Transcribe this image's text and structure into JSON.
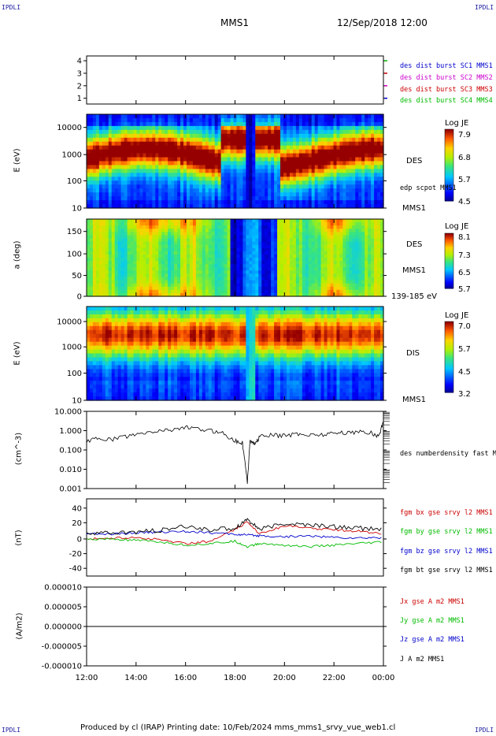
{
  "header": {
    "corner_label": "IPDLI",
    "spacecraft": "MMS1",
    "datetime": "12/Sep/2018 12:00"
  },
  "footer": {
    "text": "Produced by cl (IRAP)   Printing date: 10/Feb/2024   mms_mms1_srvy_vue_web1.cl"
  },
  "chart_data": [
    {
      "type": "line",
      "panel": "availability",
      "ylabel": "",
      "yticks": [
        "4",
        "3",
        "2",
        "1"
      ],
      "ylim": [
        0.5,
        4.5
      ],
      "legend": [
        {
          "text": "des dist burst SC1 MMS1",
          "color": "#0000cc"
        },
        {
          "text": "des dist burst SC2 MMS2",
          "color": "#cc00cc"
        },
        {
          "text": "des dist burst SC3 MMS3",
          "color": "#cc0000"
        },
        {
          "text": "des dist burst SC4 MMS4",
          "color": "#00bb00"
        }
      ]
    },
    {
      "type": "heatmap",
      "panel": "des-energy",
      "ylabel": "E (eV)",
      "yscale": "log",
      "yticks": [
        "10000",
        "1000",
        "100",
        "10"
      ],
      "ylim": [
        10,
        30000
      ],
      "right_labels": [
        "DES",
        "edp scpot MMS1",
        "MMS1"
      ],
      "colorbar": {
        "title": "Log JE",
        "ticks": [
          "7.9",
          "6.8",
          "5.7",
          "4.5"
        ],
        "range": [
          4.5,
          7.9
        ]
      }
    },
    {
      "type": "heatmap",
      "panel": "des-pitch",
      "ylabel": "a (deg)",
      "yticks": [
        "150",
        "100",
        "50",
        "0"
      ],
      "ylim": [
        0,
        180
      ],
      "right_labels": [
        "DES",
        "MMS1",
        "139-185 eV"
      ],
      "colorbar": {
        "title": "Log JE",
        "ticks": [
          "8.1",
          "7.3",
          "6.5",
          "5.7"
        ],
        "range": [
          5.7,
          8.1
        ]
      }
    },
    {
      "type": "heatmap",
      "panel": "dis-energy",
      "ylabel": "E (eV)",
      "yscale": "log",
      "yticks": [
        "10000",
        "1000",
        "100",
        "10"
      ],
      "ylim": [
        10,
        30000
      ],
      "right_labels": [
        "DIS",
        "MMS1"
      ],
      "colorbar": {
        "title": "Log JE",
        "ticks": [
          "7.0",
          "5.7",
          "4.5",
          "3.2"
        ],
        "range": [
          3.2,
          7.0
        ]
      }
    },
    {
      "type": "line",
      "panel": "density",
      "ylabel": "(cm^-3)",
      "yscale": "log",
      "yticks": [
        "10.000",
        "1.000",
        "0.100",
        "0.010",
        "0.001"
      ],
      "ylim": [
        0.001,
        10
      ],
      "legend": [
        {
          "text": "des numberdensity fast M",
          "color": "#000000"
        }
      ],
      "series": [
        {
          "name": "des numberdensity fast M",
          "x_hours": [
            0,
            0.5,
            1,
            1.5,
            2,
            2.5,
            3,
            3.5,
            4,
            4.5,
            5,
            5.5,
            6,
            6.3,
            6.5,
            6.6,
            6.8,
            7,
            7.5,
            8,
            8.5,
            9,
            9.5,
            10,
            10.5,
            11,
            11.5,
            11.8,
            12
          ],
          "values": [
            0.3,
            0.4,
            0.35,
            0.5,
            0.6,
            0.8,
            1.0,
            1.2,
            1.5,
            1.2,
            1.0,
            0.8,
            0.3,
            0.25,
            0.002,
            0.3,
            0.2,
            0.5,
            0.6,
            0.55,
            0.7,
            0.6,
            0.65,
            0.75,
            0.8,
            0.9,
            0.8,
            0.5,
            3.0
          ]
        }
      ]
    },
    {
      "type": "line",
      "panel": "magnetic-field",
      "ylabel": "(nT)",
      "yticks": [
        "40",
        "20",
        "0",
        "-20",
        "-40"
      ],
      "ylim": [
        -50,
        50
      ],
      "legend": [
        {
          "text": "fgm bx gse srvy l2 MMS1",
          "color": "#cc0000"
        },
        {
          "text": "fgm by gse srvy l2 MMS1",
          "color": "#00bb00"
        },
        {
          "text": "fgm bz gse srvy l2 MMS1",
          "color": "#0000cc"
        },
        {
          "text": "fgm bt gse srvy l2 MMS1",
          "color": "#000000"
        }
      ],
      "series": [
        {
          "name": "fgm bx gse srvy l2 MMS1",
          "x_hours": [
            0,
            1,
            2,
            3,
            4,
            5,
            6,
            6.5,
            7,
            8,
            9,
            10,
            11,
            12
          ],
          "values": [
            -2,
            -1,
            0,
            -3,
            -8,
            -5,
            10,
            20,
            5,
            15,
            12,
            10,
            8,
            5
          ]
        },
        {
          "name": "fgm by gse srvy l2 MMS1",
          "x_hours": [
            0,
            1,
            2,
            3,
            4,
            5,
            6,
            6.5,
            7,
            8,
            9,
            10,
            11,
            12
          ],
          "values": [
            -3,
            -2,
            -4,
            -6,
            -10,
            -8,
            -5,
            -12,
            -8,
            -10,
            -12,
            -10,
            -8,
            -6
          ]
        },
        {
          "name": "fgm bz gse srvy l2 MMS1",
          "x_hours": [
            0,
            1,
            2,
            3,
            4,
            5,
            6,
            6.5,
            7,
            8,
            9,
            10,
            11,
            12
          ],
          "values": [
            5,
            4,
            6,
            7,
            8,
            6,
            4,
            3,
            2,
            1,
            2,
            0,
            -1,
            0
          ]
        },
        {
          "name": "fgm bt gse srvy l2 MMS1",
          "x_hours": [
            0,
            1,
            2,
            3,
            4,
            5,
            6,
            6.5,
            7,
            8,
            9,
            10,
            11,
            12
          ],
          "values": [
            6,
            5,
            7,
            9,
            14,
            10,
            12,
            24,
            10,
            18,
            16,
            14,
            12,
            10
          ]
        }
      ]
    },
    {
      "type": "line",
      "panel": "current-density",
      "ylabel": "(A/m2)",
      "yticks": [
        "0.000010",
        "0.000005",
        "0.000000",
        "-0.000005",
        "-0.000010"
      ],
      "ylim": [
        -1e-05,
        1e-05
      ],
      "legend": [
        {
          "text": "Jx gse A m2 MMS1",
          "color": "#cc0000"
        },
        {
          "text": "Jy gse A m2 MMS1",
          "color": "#00bb00"
        },
        {
          "text": "Jz gse A m2 MMS1",
          "color": "#0000cc"
        },
        {
          "text": "J A m2 MMS1",
          "color": "#000000"
        }
      ]
    }
  ],
  "xaxis": {
    "ticks": [
      "12:00",
      "14:00",
      "16:00",
      "18:00",
      "20:00",
      "22:00",
      "00:00"
    ]
  }
}
